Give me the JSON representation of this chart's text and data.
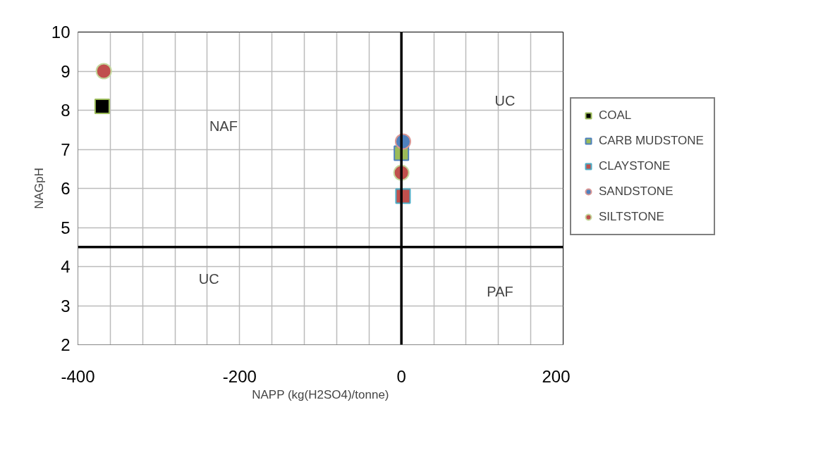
{
  "chart_data": {
    "type": "scatter",
    "xlabel": "NAPP (kg(H2SO4)/tonne)",
    "ylabel": "NAGpH",
    "xlim": [
      -400,
      200
    ],
    "ylim": [
      2,
      10
    ],
    "xticks": [
      -400,
      {
        "value": -360,
        "label": null
      },
      {
        "value": -320,
        "label": null
      },
      {
        "value": -280,
        "label": null
      },
      {
        "value": -240,
        "label": null
      },
      -200,
      {
        "value": -160,
        "label": null
      },
      {
        "value": -120,
        "label": null
      },
      {
        "value": -80,
        "label": null
      },
      {
        "value": -40,
        "label": null
      },
      0,
      {
        "value": 40,
        "label": null
      },
      {
        "value": 80,
        "label": null
      },
      {
        "value": 120,
        "label": null
      },
      {
        "value": 160,
        "label": null
      },
      200
    ],
    "yticks": [
      2,
      3,
      4,
      5,
      6,
      7,
      8,
      9,
      10
    ],
    "grid": true,
    "legend": "right",
    "ref_lines": [
      {
        "axis": "y",
        "value": 4.5,
        "color": "#000000"
      },
      {
        "axis": "x",
        "value": 0,
        "color": "#000000"
      }
    ],
    "series": [
      {
        "name": "COAL",
        "color": "#000000",
        "marker": "square",
        "x": [
          -370
        ],
        "values": [
          8.1
        ]
      },
      {
        "name": "CARB MUDSTONE",
        "color": "#9bbb59",
        "marker": "square",
        "x": [
          0
        ],
        "values": [
          6.9
        ]
      },
      {
        "name": "CLAYSTONE",
        "color": "#c0504d",
        "marker": "square",
        "x": [
          2
        ],
        "values": [
          5.8
        ]
      },
      {
        "name": "SANDSTONE",
        "color": "#4f81bd",
        "marker": "circle",
        "x": [
          2
        ],
        "values": [
          7.2
        ]
      },
      {
        "name": "SILTSTONE",
        "color": "#c0504d",
        "marker": "circle",
        "x": [
          -368,
          0
        ],
        "values": [
          9.0,
          6.4
        ]
      }
    ],
    "annotations": [
      "NAF",
      "UC",
      "UC",
      "PAF"
    ]
  }
}
